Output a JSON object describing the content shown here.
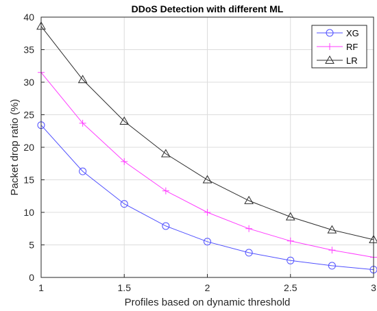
{
  "chart_data": {
    "type": "line",
    "title": "DDoS Detection with different ML",
    "xlabel": "Profiles based on dynamic threshold",
    "ylabel": "Packet drop ratio (%)",
    "xlim": [
      1,
      3
    ],
    "ylim": [
      0,
      40
    ],
    "xticks": [
      1,
      1.5,
      2,
      2.5,
      3
    ],
    "xtick_labels": [
      "1",
      "1.5",
      "2",
      "2.5",
      "3"
    ],
    "yticks": [
      0,
      5,
      10,
      15,
      20,
      25,
      30,
      35,
      40
    ],
    "ytick_labels": [
      "0",
      "5",
      "10",
      "15",
      "20",
      "25",
      "30",
      "35",
      "40"
    ],
    "grid": true,
    "legend_position": "top-right",
    "x": [
      1,
      1.25,
      1.5,
      1.75,
      2,
      2.25,
      2.5,
      2.75,
      3
    ],
    "series": [
      {
        "name": "XG",
        "color": "#4f4fff",
        "marker": "circle",
        "values": [
          23.4,
          16.3,
          11.3,
          7.9,
          5.5,
          3.8,
          2.6,
          1.8,
          1.2
        ]
      },
      {
        "name": "RF",
        "color": "#ff3cff",
        "marker": "plus",
        "values": [
          31.5,
          23.7,
          17.8,
          13.3,
          10.0,
          7.5,
          5.6,
          4.2,
          3.1
        ]
      },
      {
        "name": "LR",
        "color": "#2b2b2b",
        "marker": "triangle",
        "values": [
          38.6,
          30.4,
          24.0,
          19.0,
          15.0,
          11.8,
          9.3,
          7.3,
          5.8
        ]
      }
    ]
  }
}
